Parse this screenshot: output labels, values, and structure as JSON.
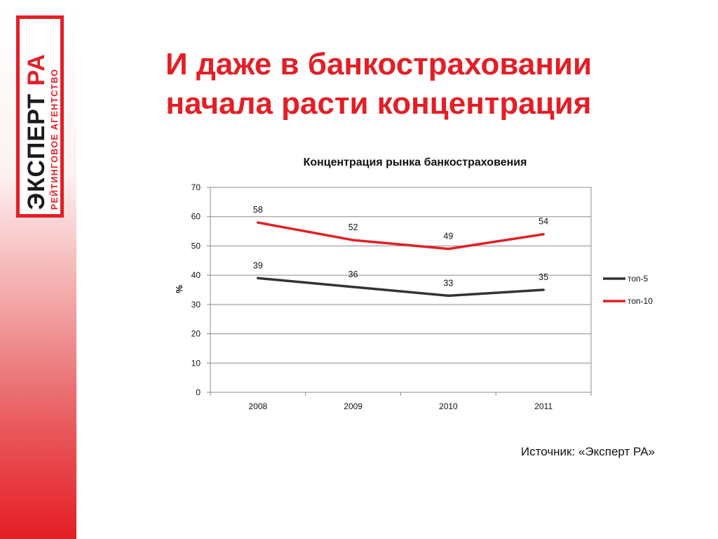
{
  "logo": {
    "main_dark": "ЭКСПЕРТ",
    "main_red": " РА",
    "sub": "РЕЙТИНГОВОЕ АГЕНТСТВО"
  },
  "slide": {
    "title_line1": "И даже в банкостраховании",
    "title_line2": "начала расти концентрация"
  },
  "source": "Источник: «Эксперт РА»",
  "colors": {
    "brand_red": "#e41e25",
    "series_top5": "#333333",
    "series_top10": "#e41e25"
  },
  "chart_data": {
    "type": "line",
    "title": "Концентрация рынка банкостраховения",
    "ylabel": "%",
    "xlabel": "",
    "categories": [
      "2008",
      "2009",
      "2010",
      "2011"
    ],
    "ylim": [
      0,
      70
    ],
    "yticks": [
      0,
      10,
      20,
      30,
      40,
      50,
      60,
      70
    ],
    "grid": true,
    "legend_position": "right",
    "series": [
      {
        "name": "топ-5",
        "color": "#333333",
        "values": [
          39,
          36,
          33,
          35
        ],
        "labels": [
          "39",
          "36",
          "33",
          "35"
        ]
      },
      {
        "name": "топ-10",
        "color": "#e41e25",
        "values": [
          58,
          52,
          49,
          54
        ],
        "labels": [
          "58",
          "52",
          "49",
          "54"
        ]
      }
    ]
  }
}
